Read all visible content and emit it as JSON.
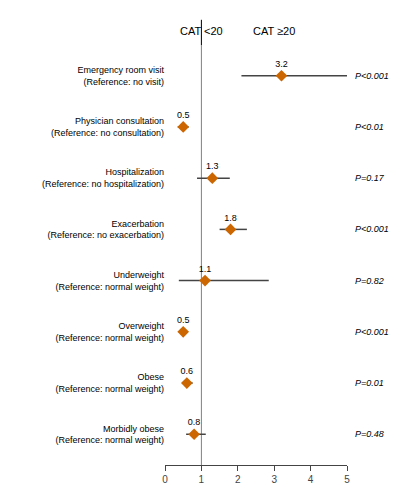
{
  "chart_data": {
    "type": "forest",
    "categories": [
      "Emergency room visit\n(Reference: no visit)",
      "Physician consultation\n(Reference: no consultation)",
      "Hospitalization\n(Reference: no hospitalization)",
      "Exacerbation\n(Reference: no exacerbation)",
      "Underweight\n(Reference: normal weight)",
      "Overweight\n(Reference: normal weight)",
      "Obese\n(Reference: normal weight)",
      "Morbidly obese\n(Reference: normal weight)"
    ],
    "values": [
      3.2,
      0.5,
      1.3,
      1.8,
      1.1,
      0.5,
      0.6,
      0.8
    ],
    "ci_low": [
      2.1,
      0.35,
      0.88,
      1.5,
      0.38,
      0.38,
      0.48,
      0.58
    ],
    "ci_high": [
      5.0,
      0.65,
      1.78,
      2.25,
      2.85,
      0.63,
      0.76,
      1.12
    ],
    "p_values": [
      "P<0.001",
      "P<0.01",
      "P=0.17",
      "P<0.001",
      "P=0.82",
      "P<0.001",
      "P=0.01",
      "P=0.48"
    ],
    "annotations": [
      {
        "text": "CAT <20",
        "x": 1
      },
      {
        "text": "CAT ≥20",
        "x": 3
      }
    ],
    "ref_line": 1,
    "xlim": [
      0,
      5
    ],
    "xticks": [
      0,
      1,
      2,
      3,
      4,
      5
    ],
    "color": "#cc6600",
    "data_labels": true,
    "grid": false
  }
}
